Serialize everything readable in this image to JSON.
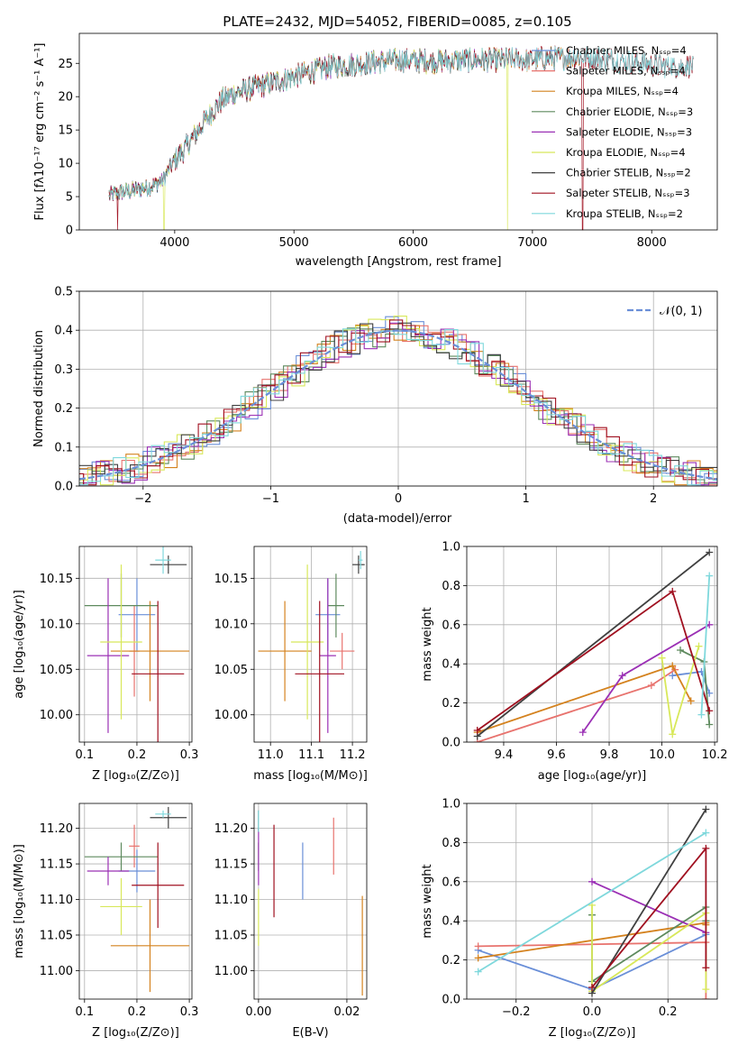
{
  "chart_data": [
    {
      "id": "spectrum",
      "type": "line",
      "title": "PLATE=2432, MJD=54052, FIBERID=0085, z=0.105",
      "xlabel": "wavelength [Angstrom, rest frame]",
      "ylabel": "Flux [fλ10⁻¹⁷ erg cm⁻² s⁻¹ A⁻¹]",
      "xlim": [
        3200,
        8550
      ],
      "ylim": [
        0,
        29.5
      ],
      "xticks": [
        4000,
        5000,
        6000,
        7000,
        8000
      ],
      "yticks": [
        0,
        5,
        10,
        15,
        20,
        25
      ],
      "grid": false,
      "legend_position": "top-right",
      "continuum": {
        "x": [
          3450,
          3600,
          3800,
          3900,
          3950,
          4000,
          4100,
          4200,
          4300,
          4400,
          4500,
          4700,
          4900,
          5100,
          5300,
          5600,
          5900,
          6200,
          6500,
          6800,
          7000,
          7200,
          7400,
          7600,
          7800,
          8000,
          8200,
          8350
        ],
        "y": [
          5.2,
          5.8,
          6.5,
          7.5,
          9.0,
          10.5,
          12.5,
          15.0,
          17.5,
          19.5,
          20.5,
          21.5,
          22.5,
          23.5,
          24.5,
          25.0,
          25.5,
          25.3,
          25.5,
          25.5,
          25.6,
          25.8,
          26.0,
          25.7,
          25.2,
          24.8,
          24.5,
          24.6
        ]
      },
      "dropouts": [
        {
          "x": 3520,
          "series": "Salpeter STELIB"
        },
        {
          "x": 3910,
          "series": "Kroupa ELODIE"
        },
        {
          "x": 6790,
          "series": "Kroupa ELODIE"
        },
        {
          "x": 7420,
          "series": "Salpeter STELIB"
        }
      ],
      "series": [
        {
          "name": "Chabrier MILES, Nₛₛₚ=4",
          "color": "#6a8fd8",
          "xmax": 7400
        },
        {
          "name": "Salpeter MILES, Nₛₛₚ=4",
          "color": "#e8736e",
          "xmax": 7400
        },
        {
          "name": "Kroupa MILES, Nₛₛₚ=4",
          "color": "#d4821e",
          "xmax": 7400
        },
        {
          "name": "Chabrier ELODIE, Nₛₛₚ=3",
          "color": "#5e8a5e",
          "xmax": 6800
        },
        {
          "name": "Salpeter ELODIE, Nₛₛₚ=3",
          "color": "#9b30b5",
          "xmax": 6800
        },
        {
          "name": "Kroupa ELODIE, Nₛₛₚ=4",
          "color": "#d8e85a",
          "xmax": 6800
        },
        {
          "name": "Chabrier STELIB, Nₛₛₚ=2",
          "color": "#404040",
          "xmax": 8350
        },
        {
          "name": "Salpeter STELIB, Nₛₛₚ=3",
          "color": "#a01020",
          "xmax": 8350
        },
        {
          "name": "Kroupa STELIB, Nₛₛₚ=2",
          "color": "#7fd8dc",
          "xmax": 8350
        }
      ]
    },
    {
      "id": "residuals",
      "type": "line",
      "title": "",
      "xlabel": "(data-model)/error",
      "ylabel": "Normed distribution",
      "xlim": [
        -2.5,
        2.5
      ],
      "ylim": [
        0,
        0.5
      ],
      "xticks": [
        -2,
        -1,
        0,
        1,
        2
      ],
      "yticks": [
        0.0,
        0.1,
        0.2,
        0.3,
        0.4,
        0.5
      ],
      "grid": true,
      "legend_position": "top-right",
      "reference": {
        "name": "𝒩(0, 1)",
        "mean": 0,
        "sigma": 1,
        "color": "#6a8fd8",
        "dash": true
      },
      "bin_width": 0.1,
      "series_colors": [
        "#6a8fd8",
        "#e8736e",
        "#d4821e",
        "#5e8a5e",
        "#9b30b5",
        "#d8e85a",
        "#404040",
        "#a01020",
        "#7fd8dc"
      ]
    },
    {
      "id": "age-vs-Z",
      "type": "scatter",
      "xlabel": "Z [log₁₀(Z/Z⊙)]",
      "ylabel": "age  [log₁₀(age/yr)]",
      "xlim": [
        0.09,
        0.305
      ],
      "ylim": [
        9.97,
        10.185
      ],
      "xticks": [
        0.1,
        0.2,
        0.3
      ],
      "yticks": [
        10.0,
        10.05,
        10.1,
        10.15
      ],
      "grid": true,
      "points": [
        {
          "color": "#6a8fd8",
          "x": 0.2,
          "xerr": 0.035,
          "y": 10.11,
          "yerr": 0.04
        },
        {
          "color": "#e8736e",
          "x": 0.195,
          "xerr": 0.01,
          "y": 10.07,
          "yerr": 0.05
        },
        {
          "color": "#d4821e",
          "x": 0.225,
          "xerr": 0.075,
          "y": 10.07,
          "yerr": 0.055
        },
        {
          "color": "#5e8a5e",
          "x": 0.17,
          "xerr": 0.07,
          "y": 10.12,
          "yerr": 0.035
        },
        {
          "color": "#9b30b5",
          "x": 0.145,
          "xerr": 0.04,
          "y": 10.065,
          "yerr": 0.085
        },
        {
          "color": "#d8e85a",
          "x": 0.17,
          "xerr": 0.04,
          "y": 10.08,
          "yerr": 0.085
        },
        {
          "color": "#404040",
          "x": 0.26,
          "xerr": 0.035,
          "y": 10.165,
          "yerr": 0.01
        },
        {
          "color": "#a01020",
          "x": 0.24,
          "xerr": 0.05,
          "y": 10.045,
          "yerr": 0.08
        },
        {
          "color": "#7fd8dc",
          "x": 0.25,
          "xerr": 0.015,
          "y": 10.17,
          "yerr": 0.015
        }
      ]
    },
    {
      "id": "age-vs-mass",
      "type": "scatter",
      "xlabel": "mass [log₁₀(M/M⊙)]",
      "ylabel": "",
      "xlim": [
        10.96,
        11.235
      ],
      "ylim": [
        9.97,
        10.185
      ],
      "xticks": [
        11.0,
        11.1,
        11.2
      ],
      "yticks": [
        10.0,
        10.05,
        10.1,
        10.15
      ],
      "grid": true,
      "points": [
        {
          "color": "#6a8fd8",
          "x": 11.14,
          "xerr": 0.03,
          "y": 10.11,
          "yerr": 0.04
        },
        {
          "color": "#e8736e",
          "x": 11.175,
          "xerr": 0.03,
          "y": 10.07,
          "yerr": 0.02
        },
        {
          "color": "#d4821e",
          "x": 11.035,
          "xerr": 0.065,
          "y": 10.07,
          "yerr": 0.055
        },
        {
          "color": "#5e8a5e",
          "x": 11.16,
          "xerr": 0.02,
          "y": 10.12,
          "yerr": 0.035
        },
        {
          "color": "#9b30b5",
          "x": 11.14,
          "xerr": 0.02,
          "y": 10.065,
          "yerr": 0.085
        },
        {
          "color": "#d8e85a",
          "x": 11.09,
          "xerr": 0.04,
          "y": 10.08,
          "yerr": 0.085
        },
        {
          "color": "#404040",
          "x": 11.215,
          "xerr": 0.015,
          "y": 10.165,
          "yerr": 0.01
        },
        {
          "color": "#a01020",
          "x": 11.12,
          "xerr": 0.06,
          "y": 10.045,
          "yerr": 0.08
        },
        {
          "color": "#7fd8dc",
          "x": 11.22,
          "xerr": 0.005,
          "y": 10.17,
          "yerr": 0.01
        }
      ]
    },
    {
      "id": "weight-vs-age",
      "type": "line",
      "xlabel": "age  [log₁₀(age/yr)]",
      "ylabel": "mass weight",
      "xlim": [
        9.26,
        10.21
      ],
      "ylim": [
        0,
        1.0
      ],
      "xticks": [
        9.4,
        9.6,
        9.8,
        10.0,
        10.2
      ],
      "yticks": [
        0.0,
        0.2,
        0.4,
        0.6,
        0.8,
        1.0
      ],
      "grid": true,
      "series": [
        {
          "color": "#6a8fd8",
          "x": [
            10.04,
            10.15,
            10.18
          ],
          "y": [
            0.34,
            0.36,
            0.25
          ]
        },
        {
          "color": "#e8736e",
          "x": [
            9.3,
            9.96,
            10.05
          ],
          "y": [
            0.0,
            0.29,
            0.37
          ]
        },
        {
          "color": "#d4821e",
          "x": [
            9.3,
            10.04,
            10.11
          ],
          "y": [
            0.05,
            0.39,
            0.21
          ]
        },
        {
          "color": "#5e8a5e",
          "x": [
            10.07,
            10.16,
            10.18
          ],
          "y": [
            0.47,
            0.41,
            0.09
          ]
        },
        {
          "color": "#9b30b5",
          "x": [
            9.7,
            9.85,
            10.18
          ],
          "y": [
            0.05,
            0.34,
            0.6
          ]
        },
        {
          "color": "#d8e85a",
          "x": [
            10.0,
            10.04,
            10.14
          ],
          "y": [
            0.43,
            0.04,
            0.49
          ]
        },
        {
          "color": "#404040",
          "x": [
            9.3,
            10.18
          ],
          "y": [
            0.03,
            0.97
          ]
        },
        {
          "color": "#a01020",
          "x": [
            9.3,
            10.04,
            10.18
          ],
          "y": [
            0.06,
            0.77,
            0.16
          ]
        },
        {
          "color": "#7fd8dc",
          "x": [
            10.15,
            10.18
          ],
          "y": [
            0.14,
            0.85
          ]
        }
      ]
    },
    {
      "id": "mass-vs-Z",
      "type": "scatter",
      "xlabel": "Z [log₁₀(Z/Z⊙)]",
      "ylabel": "mass [log₁₀(M/M⊙)]",
      "xlim": [
        0.09,
        0.305
      ],
      "ylim": [
        10.96,
        11.235
      ],
      "xticks": [
        0.1,
        0.2,
        0.3
      ],
      "yticks": [
        11.0,
        11.05,
        11.1,
        11.15,
        11.2
      ],
      "grid": true,
      "points": [
        {
          "color": "#6a8fd8",
          "x": 0.2,
          "xerr": 0.035,
          "y": 11.14,
          "yerr": 0.03
        },
        {
          "color": "#e8736e",
          "x": 0.195,
          "xerr": 0.01,
          "y": 11.175,
          "yerr": 0.03
        },
        {
          "color": "#d4821e",
          "x": 0.225,
          "xerr": 0.075,
          "y": 11.035,
          "yerr": 0.065
        },
        {
          "color": "#5e8a5e",
          "x": 0.17,
          "xerr": 0.07,
          "y": 11.16,
          "yerr": 0.02
        },
        {
          "color": "#9b30b5",
          "x": 0.145,
          "xerr": 0.04,
          "y": 11.14,
          "yerr": 0.02
        },
        {
          "color": "#d8e85a",
          "x": 0.17,
          "xerr": 0.04,
          "y": 11.09,
          "yerr": 0.04
        },
        {
          "color": "#404040",
          "x": 0.26,
          "xerr": 0.035,
          "y": 11.215,
          "yerr": 0.015
        },
        {
          "color": "#a01020",
          "x": 0.24,
          "xerr": 0.05,
          "y": 11.12,
          "yerr": 0.06
        },
        {
          "color": "#7fd8dc",
          "x": 0.25,
          "xerr": 0.015,
          "y": 11.22,
          "yerr": 0.005
        }
      ]
    },
    {
      "id": "mass-vs-EBV",
      "type": "scatter",
      "xlabel": "E(B-V)",
      "ylabel": "",
      "xlim": [
        -0.001,
        0.0245
      ],
      "ylim": [
        10.96,
        11.235
      ],
      "xticks": [
        0.0,
        0.02
      ],
      "yticks": [
        11.0,
        11.05,
        11.1,
        11.15,
        11.2
      ],
      "grid": true,
      "points": [
        {
          "color": "#6a8fd8",
          "x": 0.01,
          "xerr": 0,
          "y": 11.14,
          "yerr": 0.04
        },
        {
          "color": "#e8736e",
          "x": 0.017,
          "xerr": 0,
          "y": 11.175,
          "yerr": 0.04
        },
        {
          "color": "#d4821e",
          "x": 0.0235,
          "xerr": 0,
          "y": 11.035,
          "yerr": 0.07
        },
        {
          "color": "#5e8a5e",
          "x": 0.0,
          "xerr": 0,
          "y": 11.16,
          "yerr": 0.02
        },
        {
          "color": "#9b30b5",
          "x": 0.0,
          "xerr": 0,
          "y": 11.16,
          "yerr": 0.04
        },
        {
          "color": "#d8e85a",
          "x": 0.0,
          "xerr": 0,
          "y": 11.075,
          "yerr": 0.04
        },
        {
          "color": "#404040",
          "x": 0.0,
          "xerr": 0,
          "y": 11.21,
          "yerr": 0.015
        },
        {
          "color": "#a01020",
          "x": 0.0035,
          "xerr": 0,
          "y": 11.14,
          "yerr": 0.065
        },
        {
          "color": "#7fd8dc",
          "x": 0.0,
          "xerr": 0,
          "y": 11.21,
          "yerr": 0.015
        }
      ]
    },
    {
      "id": "weight-vs-Z",
      "type": "line",
      "xlabel": "Z [log₁₀(Z/Z⊙)]",
      "ylabel": "mass weight",
      "xlim": [
        -0.33,
        0.33
      ],
      "ylim": [
        0,
        1.0
      ],
      "xticks": [
        -0.2,
        0.0,
        0.2
      ],
      "yticks": [
        0.0,
        0.2,
        0.4,
        0.6,
        0.8,
        1.0
      ],
      "grid": true,
      "series": [
        {
          "color": "#6a8fd8",
          "x": [
            -0.3,
            0.0,
            0.3
          ],
          "y": [
            0.25,
            0.05,
            0.33
          ]
        },
        {
          "color": "#e8736e",
          "x": [
            -0.3,
            0.3,
            0.3
          ],
          "y": [
            0.27,
            0.29,
            0.0
          ]
        },
        {
          "color": "#d4821e",
          "x": [
            -0.3,
            0.3,
            0.3
          ],
          "y": [
            0.21,
            0.39,
            0.38
          ]
        },
        {
          "color": "#5e8a5e",
          "x": [
            0.0,
            0.0,
            0.3,
            0.3
          ],
          "y": [
            0.43,
            0.09,
            0.47,
            0.4
          ]
        },
        {
          "color": "#9b30b5",
          "x": [
            0.0,
            0.3
          ],
          "y": [
            0.6,
            0.34
          ]
        },
        {
          "color": "#d8e85a",
          "x": [
            0.0,
            0.0,
            0.3,
            0.3
          ],
          "y": [
            0.48,
            0.04,
            0.44,
            0.05
          ]
        },
        {
          "color": "#404040",
          "x": [
            0.0,
            0.3
          ],
          "y": [
            0.03,
            0.97
          ]
        },
        {
          "color": "#a01020",
          "x": [
            0.0,
            0.3,
            0.3
          ],
          "y": [
            0.06,
            0.77,
            0.16
          ]
        },
        {
          "color": "#7fd8dc",
          "x": [
            -0.3,
            0.3
          ],
          "y": [
            0.14,
            0.85
          ]
        }
      ]
    }
  ]
}
